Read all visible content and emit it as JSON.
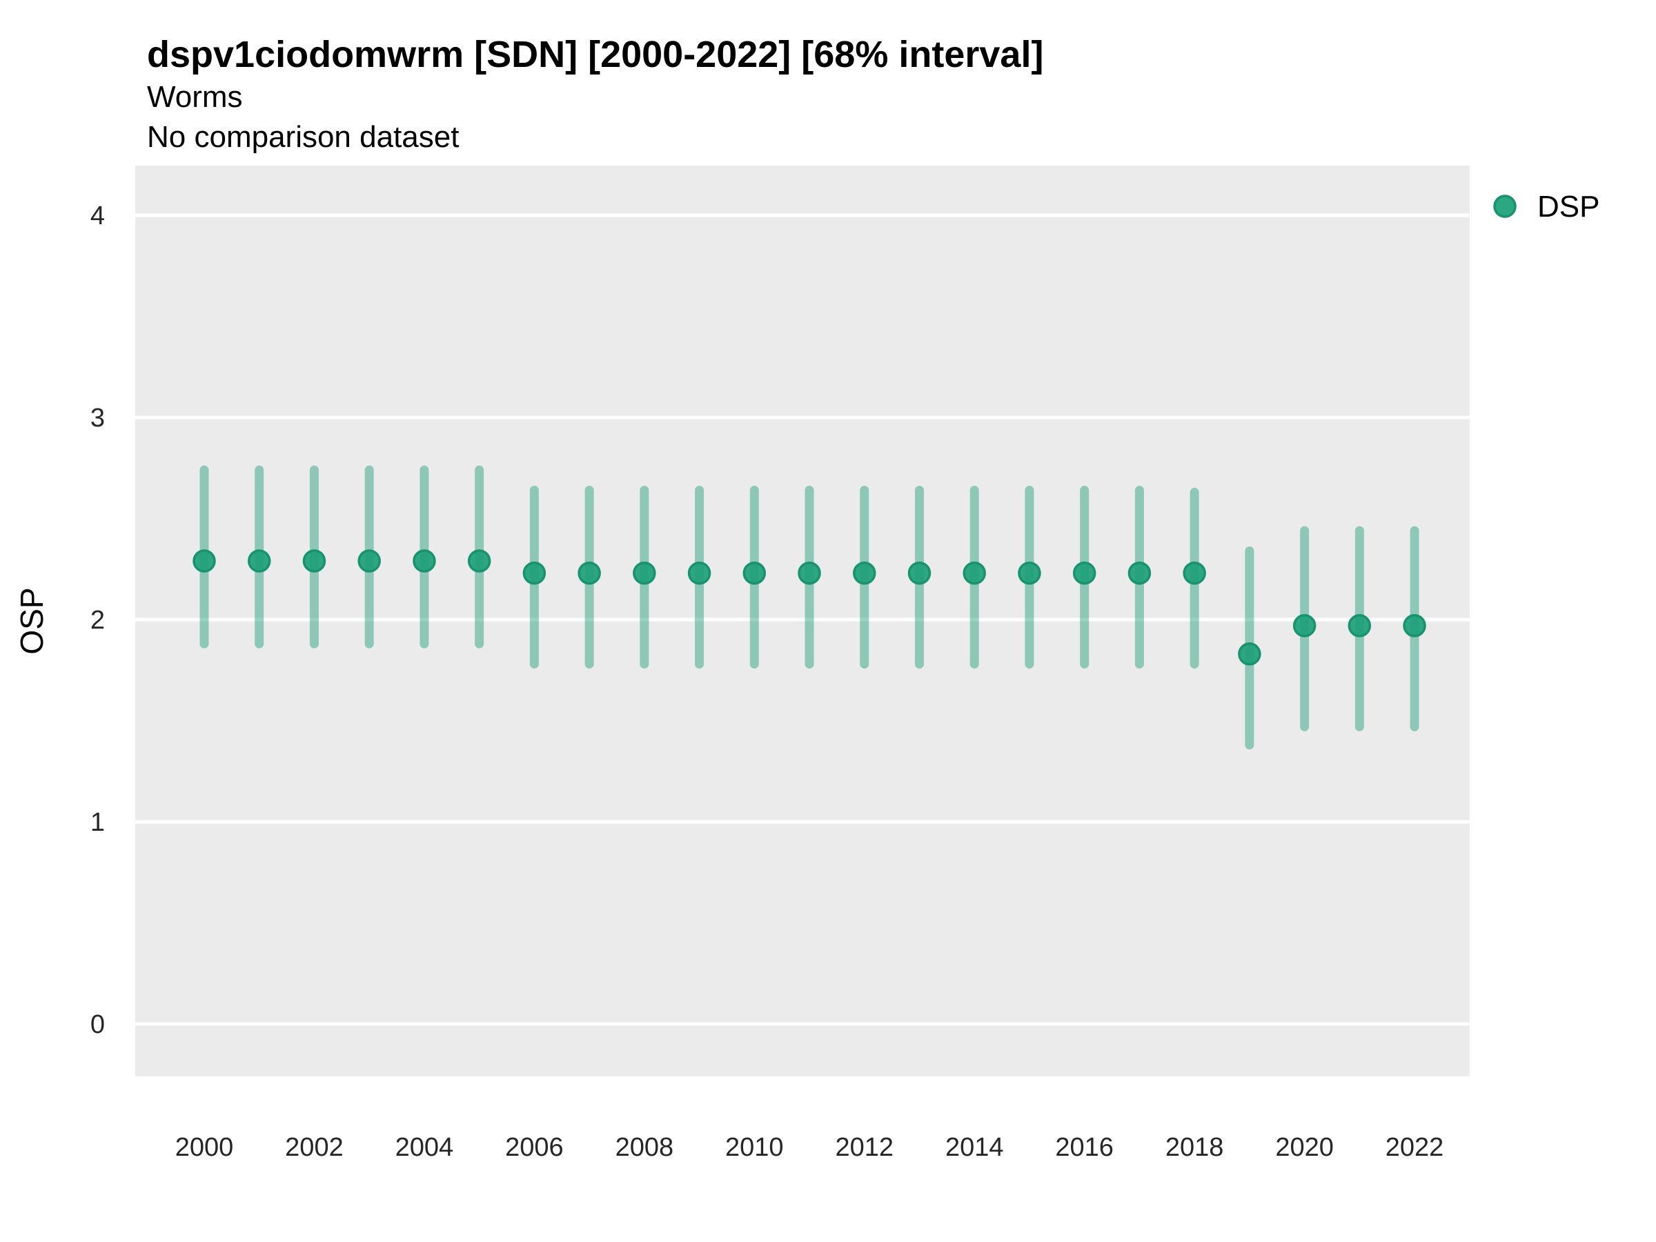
{
  "header": {
    "title": "dspv1ciodomwrm [SDN] [2000-2022] [68% interval]",
    "subtitle": "Worms",
    "note": "No comparison dataset"
  },
  "axes": {
    "y_label": "OSP",
    "y_tick_labels": [
      "4",
      "3",
      "2",
      "1",
      "0"
    ],
    "x_tick_labels": [
      "2000",
      "2002",
      "2004",
      "2006",
      "2008",
      "2010",
      "2012",
      "2014",
      "2016",
      "2018",
      "2020",
      "2022"
    ]
  },
  "legend": {
    "position": "right",
    "items": [
      {
        "label": "DSP",
        "color": "#1b9e77"
      }
    ]
  },
  "colors": {
    "page_bg": "#ffffff",
    "panel_bg": "#ebebeb",
    "grid": "#ffffff",
    "series": "#1b9e77",
    "point_stroke": "#18936d",
    "tick_text": "#262626",
    "title_text": "#000000"
  },
  "chart_data": {
    "type": "scatter",
    "subtype": "pointrange",
    "title": "dspv1ciodomwrm [SDN] [2000-2022] [68% interval]",
    "subtitle": "Worms",
    "note": "No comparison dataset",
    "xlabel": "",
    "ylabel": "OSP",
    "interval": "68%",
    "ylim": [
      0,
      4
    ],
    "xlim": [
      2000,
      2022
    ],
    "y_ticks": [
      0,
      1,
      2,
      3,
      4
    ],
    "x_ticks": [
      2000,
      2002,
      2004,
      2006,
      2008,
      2010,
      2012,
      2014,
      2016,
      2018,
      2020,
      2022
    ],
    "grid": "major-horizontal-only",
    "legend_position": "right",
    "series": [
      {
        "name": "DSP",
        "color": "#1b9e77",
        "points": [
          {
            "year": 2000,
            "value": 2.29,
            "lo": 1.88,
            "hi": 2.74
          },
          {
            "year": 2001,
            "value": 2.29,
            "lo": 1.88,
            "hi": 2.74
          },
          {
            "year": 2002,
            "value": 2.29,
            "lo": 1.88,
            "hi": 2.74
          },
          {
            "year": 2003,
            "value": 2.29,
            "lo": 1.88,
            "hi": 2.74
          },
          {
            "year": 2004,
            "value": 2.29,
            "lo": 1.88,
            "hi": 2.74
          },
          {
            "year": 2005,
            "value": 2.29,
            "lo": 1.88,
            "hi": 2.74
          },
          {
            "year": 2006,
            "value": 2.23,
            "lo": 1.78,
            "hi": 2.64
          },
          {
            "year": 2007,
            "value": 2.23,
            "lo": 1.78,
            "hi": 2.64
          },
          {
            "year": 2008,
            "value": 2.23,
            "lo": 1.78,
            "hi": 2.64
          },
          {
            "year": 2009,
            "value": 2.23,
            "lo": 1.78,
            "hi": 2.64
          },
          {
            "year": 2010,
            "value": 2.23,
            "lo": 1.78,
            "hi": 2.64
          },
          {
            "year": 2011,
            "value": 2.23,
            "lo": 1.78,
            "hi": 2.64
          },
          {
            "year": 2012,
            "value": 2.23,
            "lo": 1.78,
            "hi": 2.64
          },
          {
            "year": 2013,
            "value": 2.23,
            "lo": 1.78,
            "hi": 2.64
          },
          {
            "year": 2014,
            "value": 2.23,
            "lo": 1.78,
            "hi": 2.64
          },
          {
            "year": 2015,
            "value": 2.23,
            "lo": 1.78,
            "hi": 2.64
          },
          {
            "year": 2016,
            "value": 2.23,
            "lo": 1.78,
            "hi": 2.64
          },
          {
            "year": 2017,
            "value": 2.23,
            "lo": 1.78,
            "hi": 2.64
          },
          {
            "year": 2018,
            "value": 2.23,
            "lo": 1.78,
            "hi": 2.63
          },
          {
            "year": 2019,
            "value": 1.83,
            "lo": 1.38,
            "hi": 2.34
          },
          {
            "year": 2020,
            "value": 1.97,
            "lo": 1.47,
            "hi": 2.44
          },
          {
            "year": 2021,
            "value": 1.97,
            "lo": 1.47,
            "hi": 2.44
          },
          {
            "year": 2022,
            "value": 1.97,
            "lo": 1.47,
            "hi": 2.44
          }
        ]
      }
    ]
  }
}
